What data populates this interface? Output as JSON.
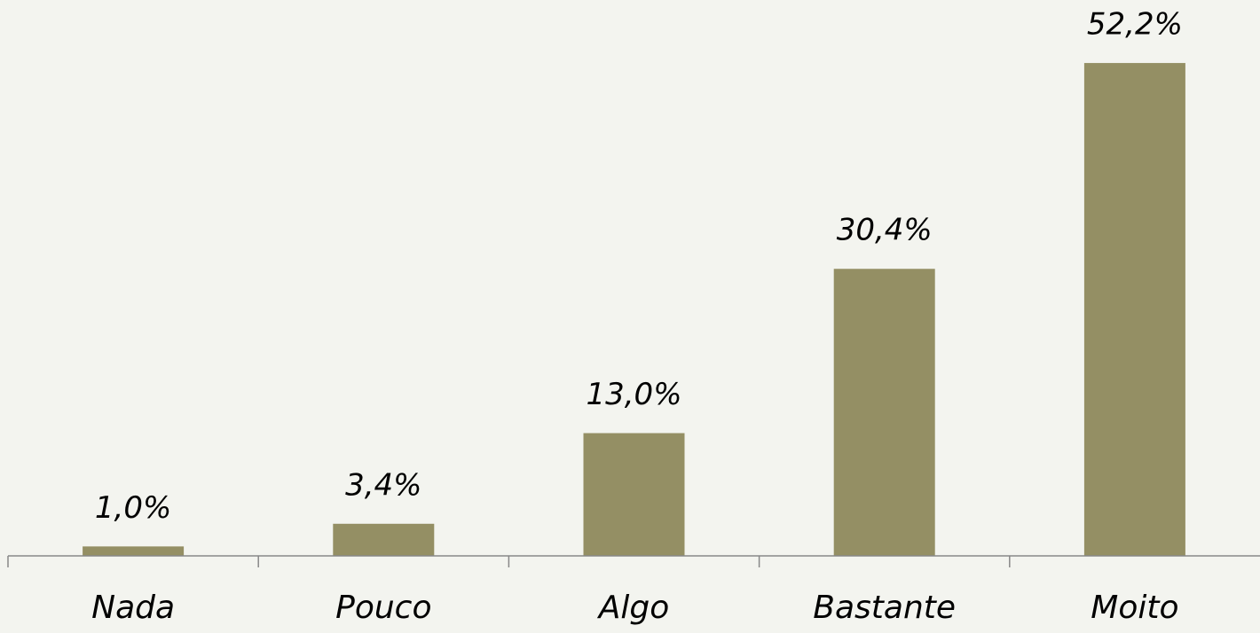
{
  "chart_data": {
    "type": "bar",
    "categories": [
      "Nada",
      "Pouco",
      "Algo",
      "Bastante",
      "Moito"
    ],
    "values": [
      1.0,
      3.4,
      13.0,
      30.4,
      52.2
    ],
    "value_labels": [
      "1,0%",
      "3,4%",
      "13,0%",
      "30,4%",
      "52,2%"
    ],
    "color": "#948f64"
  }
}
